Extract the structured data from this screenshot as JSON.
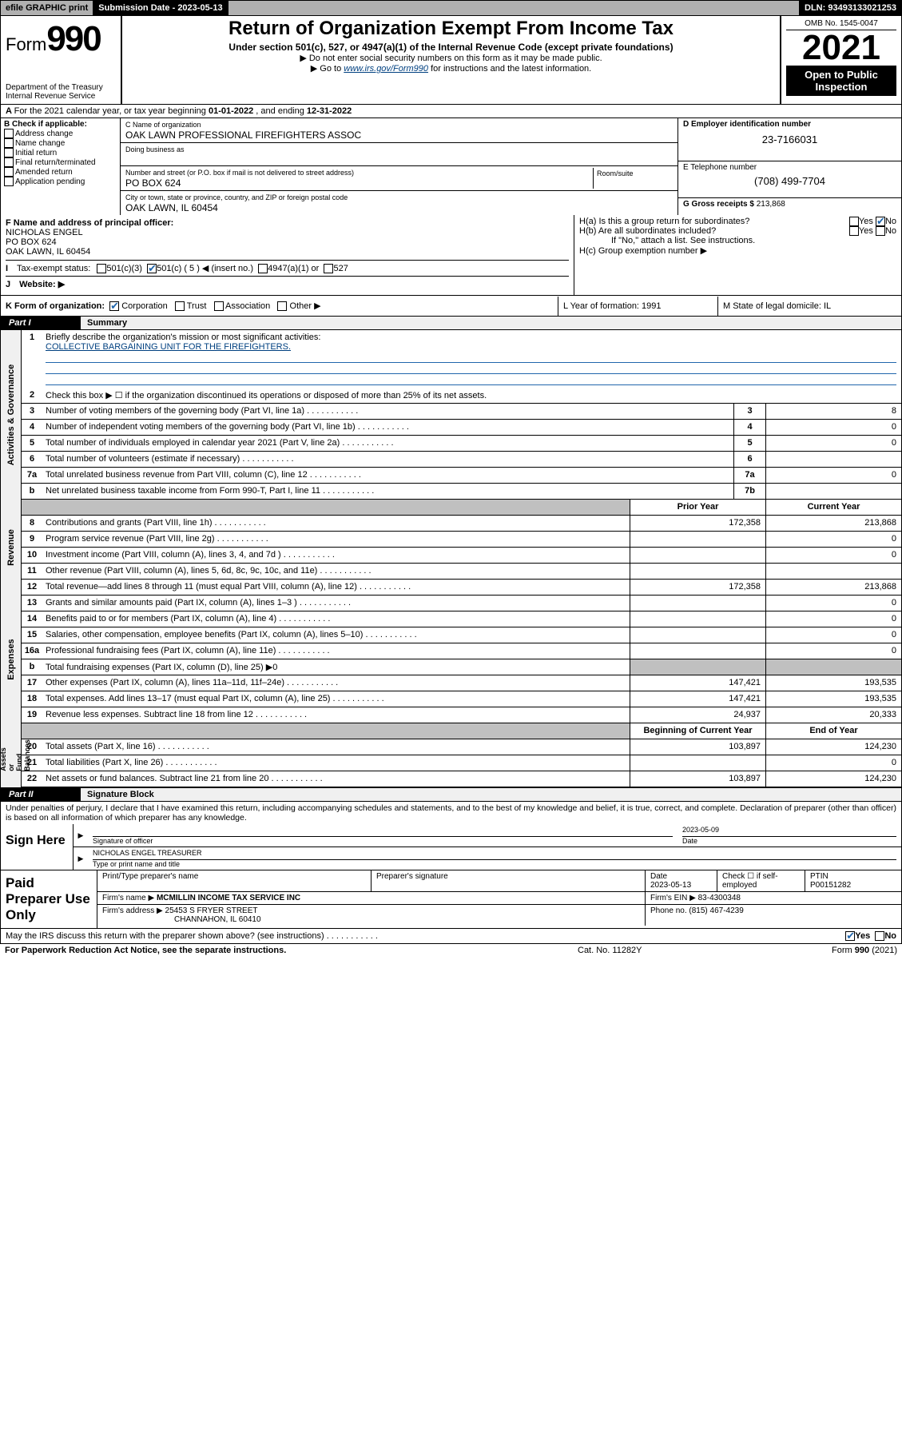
{
  "topbar": {
    "efile": "efile GRAPHIC print",
    "subdate_label": "Submission Date - 2023-05-13",
    "dln": "DLN: 93493133021253"
  },
  "header": {
    "form_word": "Form",
    "form_num": "990",
    "dept": "Department of the Treasury\nInternal Revenue Service",
    "title": "Return of Organization Exempt From Income Tax",
    "sub": "Under section 501(c), 527, or 4947(a)(1) of the Internal Revenue Code (except private foundations)",
    "note1": "Do not enter social security numbers on this form as it may be made public.",
    "note2_pre": "Go to ",
    "note2_link": "www.irs.gov/Form990",
    "note2_post": " for instructions and the latest information.",
    "omb": "OMB No. 1545-0047",
    "year": "2021",
    "otp": "Open to Public Inspection"
  },
  "A": {
    "text_pre": "For the 2021 calendar year, or tax year beginning ",
    "begin": "01-01-2022",
    "mid": " , and ending ",
    "end": "12-31-2022"
  },
  "B": {
    "label": "B Check if applicable:",
    "opts": [
      "Address change",
      "Name change",
      "Initial return",
      "Final return/terminated",
      "Amended return",
      "Application pending"
    ]
  },
  "C": {
    "name_label": "C Name of organization",
    "name": "OAK LAWN PROFESSIONAL FIREFIGHTERS ASSOC",
    "dba_label": "Doing business as",
    "street_label": "Number and street (or P.O. box if mail is not delivered to street address)",
    "street": "PO BOX 624",
    "room_label": "Room/suite",
    "city_label": "City or town, state or province, country, and ZIP or foreign postal code",
    "city": "OAK LAWN, IL  60454"
  },
  "D": {
    "label": "D Employer identification number",
    "val": "23-7166031"
  },
  "E": {
    "label": "E Telephone number",
    "val": "(708) 499-7704"
  },
  "G": {
    "label": "G Gross receipts $",
    "val": "213,868"
  },
  "F": {
    "label": "F Name and address of principal officer:",
    "name": "NICHOLAS ENGEL",
    "addr1": "PO BOX 624",
    "addr2": "OAK LAWN, IL  60454"
  },
  "H": {
    "a": "H(a)  Is this a group return for subordinates?",
    "b": "H(b)  Are all subordinates included?",
    "b_note": "If \"No,\" attach a list. See instructions.",
    "c": "H(c)  Group exemption number ▶",
    "yes": "Yes",
    "no": "No"
  },
  "I": {
    "label": "Tax-exempt status:",
    "o1": "501(c)(3)",
    "o2": "501(c) ( 5 ) ◀ (insert no.)",
    "o3": "4947(a)(1) or",
    "o4": "527"
  },
  "J": {
    "label": "Website: ▶"
  },
  "K": {
    "label": "K Form of organization:",
    "opts": [
      "Corporation",
      "Trust",
      "Association",
      "Other ▶"
    ],
    "L": "L Year of formation: 1991",
    "M": "M State of legal domicile: IL"
  },
  "partI": {
    "tag": "Part I",
    "title": "Summary"
  },
  "mission": {
    "label": "Briefly describe the organization's mission or most significant activities:",
    "text": "COLLECTIVE BARGAINING UNIT FOR THE FIREFIGHTERS."
  },
  "lines_top": [
    {
      "n": "2",
      "d": "Check this box ▶ ☐  if the organization discontinued its operations or disposed of more than 25% of its net assets."
    },
    {
      "n": "3",
      "d": "Number of voting members of the governing body (Part VI, line 1a)",
      "box": "3",
      "v": "8"
    },
    {
      "n": "4",
      "d": "Number of independent voting members of the governing body (Part VI, line 1b)",
      "box": "4",
      "v": "0"
    },
    {
      "n": "5",
      "d": "Total number of individuals employed in calendar year 2021 (Part V, line 2a)",
      "box": "5",
      "v": "0"
    },
    {
      "n": "6",
      "d": "Total number of volunteers (estimate if necessary)",
      "box": "6",
      "v": ""
    },
    {
      "n": "7a",
      "d": "Total unrelated business revenue from Part VIII, column (C), line 12",
      "box": "7a",
      "v": "0"
    },
    {
      "n": "b",
      "d": "Net unrelated business taxable income from Form 990-T, Part I, line 11",
      "box": "7b",
      "v": ""
    }
  ],
  "colhdr": {
    "prior": "Prior Year",
    "curr": "Current Year"
  },
  "revenue": [
    {
      "n": "8",
      "d": "Contributions and grants (Part VIII, line 1h)",
      "p": "172,358",
      "c": "213,868"
    },
    {
      "n": "9",
      "d": "Program service revenue (Part VIII, line 2g)",
      "p": "",
      "c": "0"
    },
    {
      "n": "10",
      "d": "Investment income (Part VIII, column (A), lines 3, 4, and 7d )",
      "p": "",
      "c": "0"
    },
    {
      "n": "11",
      "d": "Other revenue (Part VIII, column (A), lines 5, 6d, 8c, 9c, 10c, and 11e)",
      "p": "",
      "c": ""
    },
    {
      "n": "12",
      "d": "Total revenue—add lines 8 through 11 (must equal Part VIII, column (A), line 12)",
      "p": "172,358",
      "c": "213,868"
    }
  ],
  "expenses": [
    {
      "n": "13",
      "d": "Grants and similar amounts paid (Part IX, column (A), lines 1–3 )",
      "p": "",
      "c": "0"
    },
    {
      "n": "14",
      "d": "Benefits paid to or for members (Part IX, column (A), line 4)",
      "p": "",
      "c": "0"
    },
    {
      "n": "15",
      "d": "Salaries, other compensation, employee benefits (Part IX, column (A), lines 5–10)",
      "p": "",
      "c": "0"
    },
    {
      "n": "16a",
      "d": "Professional fundraising fees (Part IX, column (A), line 11e)",
      "p": "",
      "c": "0"
    },
    {
      "n": "b",
      "d": "Total fundraising expenses (Part IX, column (D), line 25) ▶0",
      "grey": true
    },
    {
      "n": "17",
      "d": "Other expenses (Part IX, column (A), lines 11a–11d, 11f–24e)",
      "p": "147,421",
      "c": "193,535"
    },
    {
      "n": "18",
      "d": "Total expenses. Add lines 13–17 (must equal Part IX, column (A), line 25)",
      "p": "147,421",
      "c": "193,535"
    },
    {
      "n": "19",
      "d": "Revenue less expenses. Subtract line 18 from line 12",
      "p": "24,937",
      "c": "20,333"
    }
  ],
  "colhdr2": {
    "prior": "Beginning of Current Year",
    "curr": "End of Year"
  },
  "netassets": [
    {
      "n": "20",
      "d": "Total assets (Part X, line 16)",
      "p": "103,897",
      "c": "124,230"
    },
    {
      "n": "21",
      "d": "Total liabilities (Part X, line 26)",
      "p": "",
      "c": "0"
    },
    {
      "n": "22",
      "d": "Net assets or fund balances. Subtract line 21 from line 20",
      "p": "103,897",
      "c": "124,230"
    }
  ],
  "bands": {
    "gov": "Activities & Governance",
    "rev": "Revenue",
    "exp": "Expenses",
    "net": "Net Assets or\nFund Balances"
  },
  "partII": {
    "tag": "Part II",
    "title": "Signature Block"
  },
  "decl": "Under penalties of perjury, I declare that I have examined this return, including accompanying schedules and statements, and to the best of my knowledge and belief, it is true, correct, and complete. Declaration of preparer (other than officer) is based on all information of which preparer has any knowledge.",
  "sign": {
    "here": "Sign Here",
    "sig_label": "Signature of officer",
    "date_label": "Date",
    "date": "2023-05-09",
    "name": "NICHOLAS ENGEL  TREASURER",
    "name_label": "Type or print name and title"
  },
  "prep": {
    "here": "Paid Preparer Use Only",
    "h1": "Print/Type preparer's name",
    "h2": "Preparer's signature",
    "h3": "Date",
    "h3v": "2023-05-13",
    "h4": "Check ☐ if self-employed",
    "h5": "PTIN",
    "h5v": "P00151282",
    "firm_lbl": "Firm's name    ▶",
    "firm": "MCMILLIN INCOME TAX SERVICE INC",
    "ein_lbl": "Firm's EIN ▶",
    "ein": "83-4300348",
    "addr_lbl": "Firm's address ▶",
    "addr1": "25453 S FRYER STREET",
    "addr2": "CHANNAHON, IL  60410",
    "phone_lbl": "Phone no.",
    "phone": "(815) 467-4239"
  },
  "mayirs": {
    "q": "May the IRS discuss this return with the preparer shown above? (see instructions)",
    "yes": "Yes",
    "no": "No"
  },
  "footer": {
    "l": "For Paperwork Reduction Act Notice, see the separate instructions.",
    "m": "Cat. No. 11282Y",
    "r": "Form 990 (2021)"
  },
  "colors": {
    "link": "#004080",
    "check": "#2166ac",
    "greyband": "#f0f0f0",
    "greycell": "#c0c0c0"
  }
}
